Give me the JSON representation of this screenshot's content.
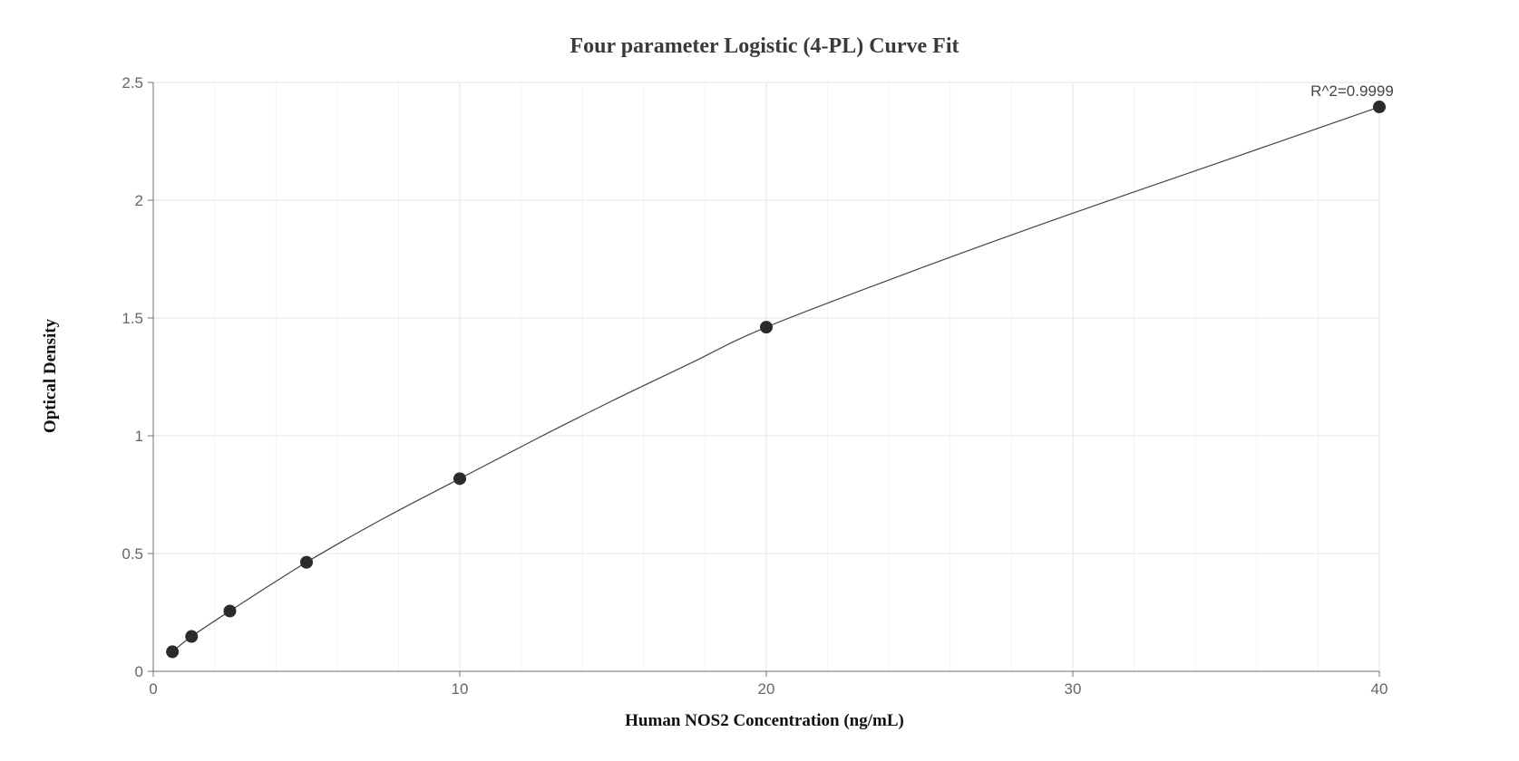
{
  "chart_data": {
    "type": "scatter",
    "title": "Four parameter Logistic (4-PL) Curve Fit",
    "xlabel": "Human NOS2 Concentration (ng/mL)",
    "ylabel": "Optical Density",
    "xlim": [
      0,
      40
    ],
    "ylim": [
      0,
      2.5
    ],
    "x_ticks": [
      "0",
      "10",
      "20",
      "30",
      "40"
    ],
    "y_ticks": [
      "0",
      "0.5",
      "1",
      "1.5",
      "2",
      "2.5"
    ],
    "grid": true,
    "series": [
      {
        "points": [
          {
            "x": 0.625,
            "y": 0.083
          },
          {
            "x": 1.25,
            "y": 0.148
          },
          {
            "x": 2.5,
            "y": 0.256
          },
          {
            "x": 5,
            "y": 0.463
          },
          {
            "x": 10,
            "y": 0.818
          },
          {
            "x": 20,
            "y": 1.461
          },
          {
            "x": 40,
            "y": 2.396
          }
        ]
      }
    ],
    "fit_curve": {
      "model": "4-PL",
      "samples": [
        {
          "x": 0.625,
          "y": 0.083
        },
        {
          "x": 1.25,
          "y": 0.148
        },
        {
          "x": 2.5,
          "y": 0.256
        },
        {
          "x": 5,
          "y": 0.463
        },
        {
          "x": 7.5,
          "y": 0.648
        },
        {
          "x": 10,
          "y": 0.818
        },
        {
          "x": 12.5,
          "y": 0.987
        },
        {
          "x": 15,
          "y": 1.15
        },
        {
          "x": 17.5,
          "y": 1.306
        },
        {
          "x": 20,
          "y": 1.461
        },
        {
          "x": 25,
          "y": 1.71
        },
        {
          "x": 30,
          "y": 1.945
        },
        {
          "x": 35,
          "y": 2.17
        },
        {
          "x": 40,
          "y": 2.396
        }
      ]
    },
    "annotation": {
      "text": "R^2=0.9999",
      "x": 40,
      "y": 2.396
    },
    "colors": {
      "point": "#2b2b2b",
      "line": "#444444",
      "grid_major": "#e3e6ee",
      "grid_minor": "#f1f3f7",
      "axis": "#6e7079"
    }
  }
}
